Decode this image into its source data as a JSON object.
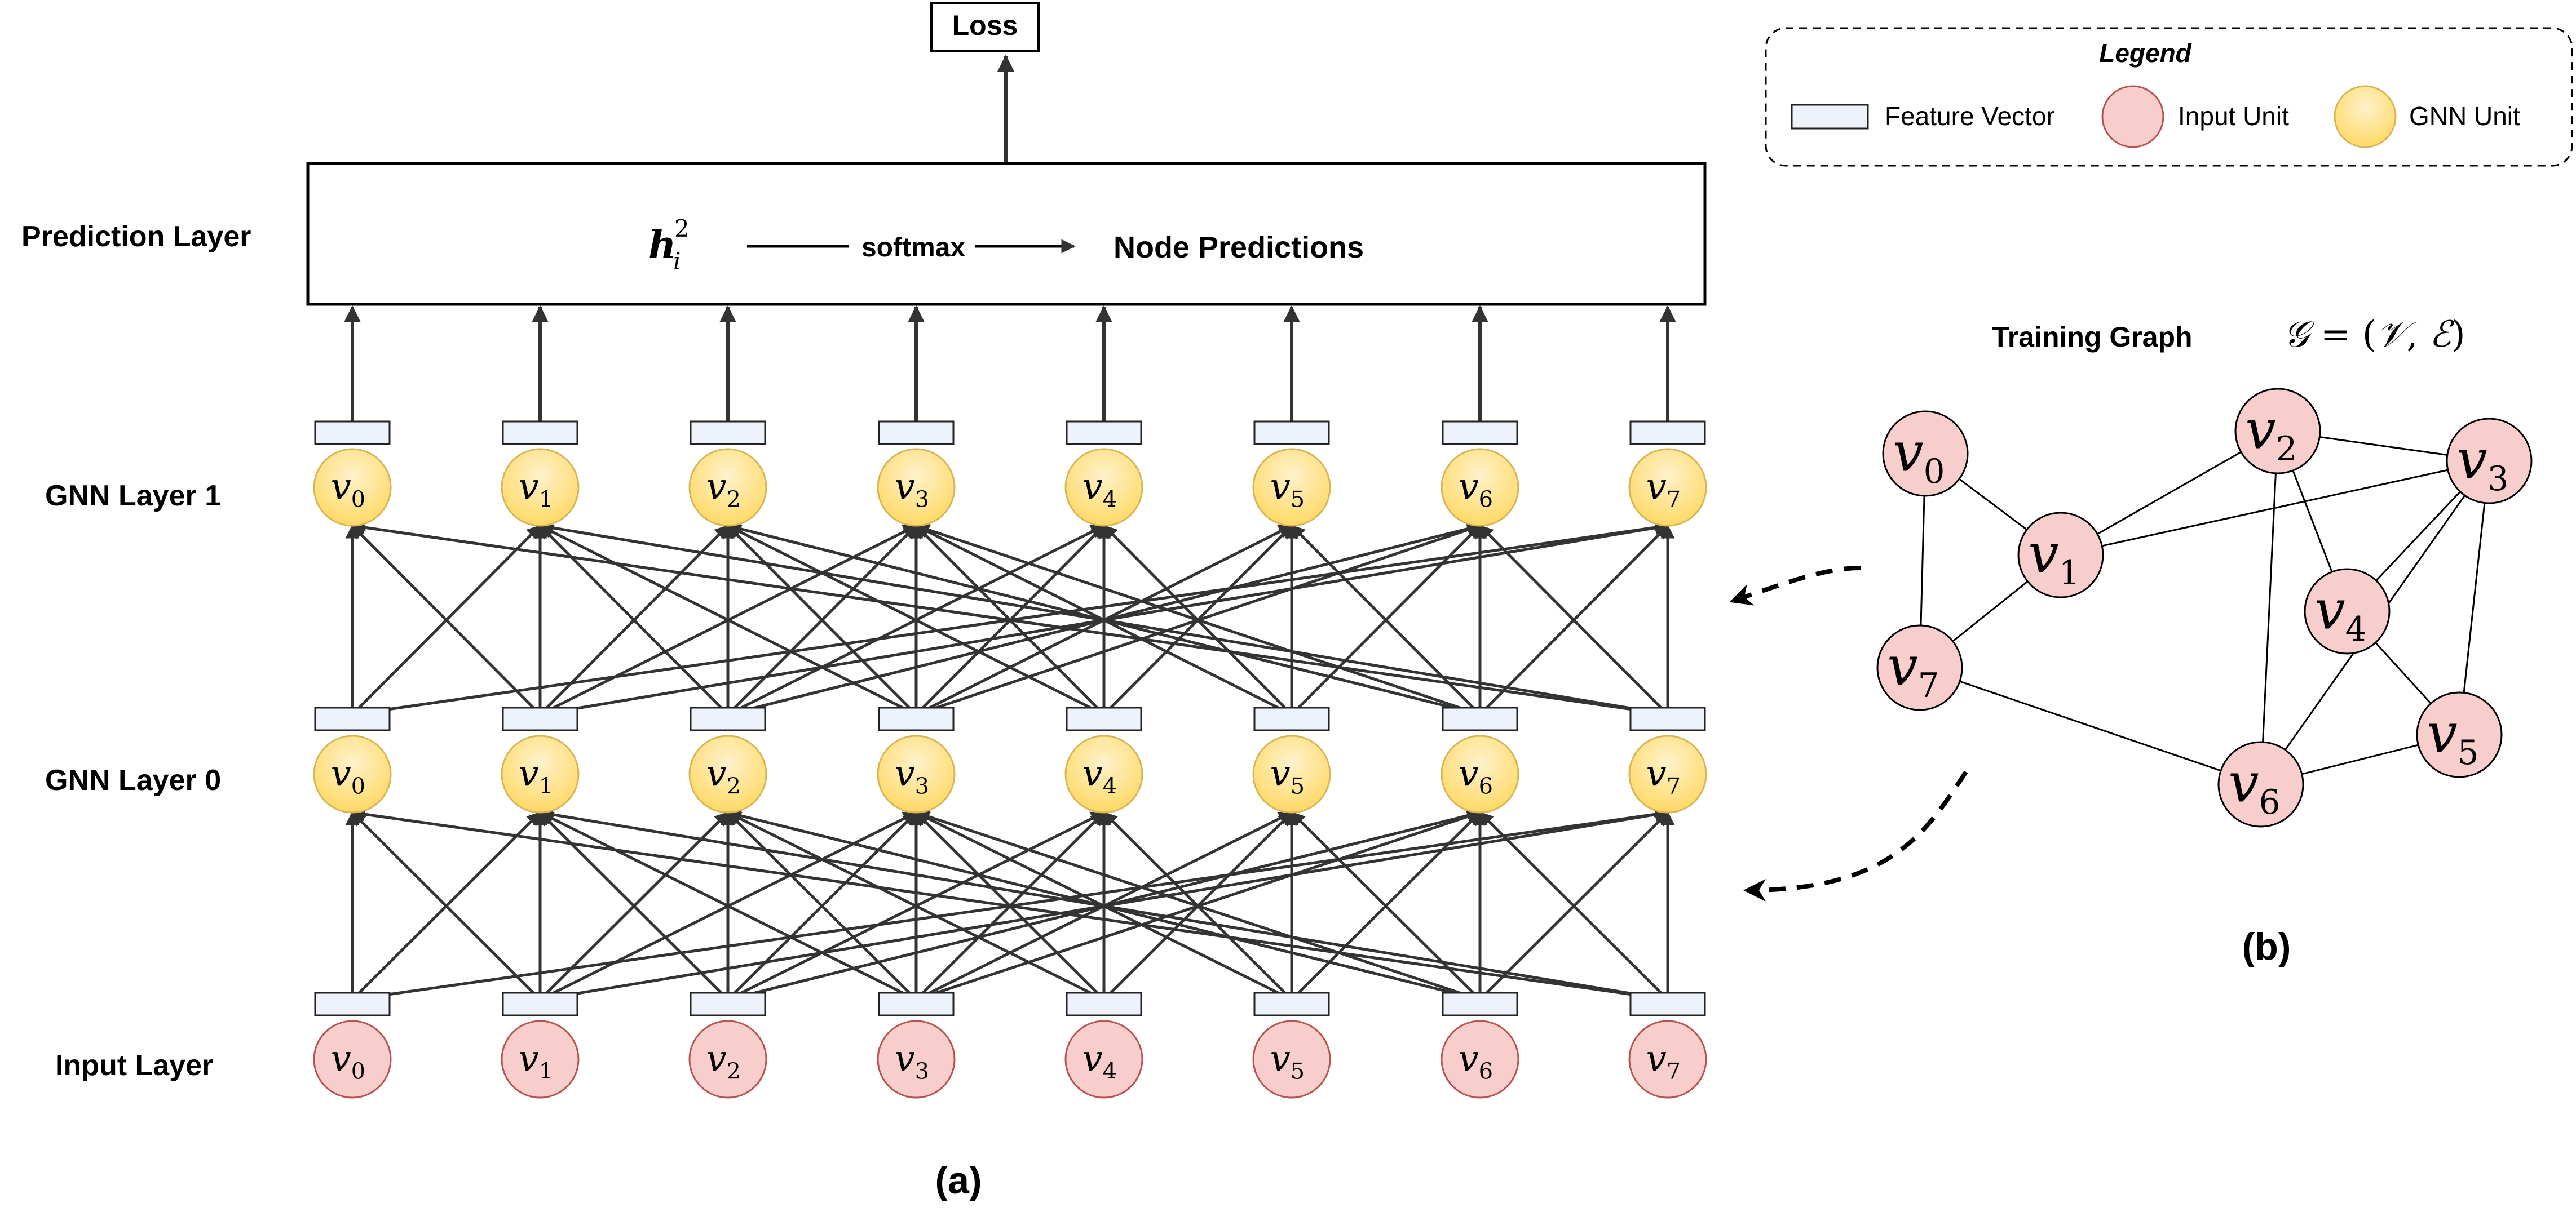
{
  "labels": {
    "loss": "Loss",
    "prediction_layer": "Prediction Layer",
    "gnn_layer_1": "GNN Layer 1",
    "gnn_layer_0": "GNN Layer 0",
    "input_layer": "Input Layer",
    "caption_a": "(a)",
    "caption_b": "(b)",
    "training_graph": "Training Graph",
    "softmax": "softmax",
    "node_predictions": "Node Predictions",
    "h_symbol": "h",
    "h_subscript": "i",
    "h_superscript": "2"
  },
  "graph_formula": {
    "g": "𝒢",
    "equals": " = (",
    "v": "𝒱",
    "comma": ", ",
    "e": "ℰ",
    "close": ")"
  },
  "legend": {
    "title": "Legend",
    "feature_vector": "Feature Vector",
    "input_unit": "Input Unit",
    "gnn_unit": "GNN Unit"
  },
  "node_symbol": "v",
  "nodes": [
    "0",
    "1",
    "2",
    "3",
    "4",
    "5",
    "6",
    "7"
  ],
  "graph_edges": [
    [
      0,
      1
    ],
    [
      0,
      7
    ],
    [
      1,
      2
    ],
    [
      1,
      3
    ],
    [
      1,
      7
    ],
    [
      2,
      3
    ],
    [
      2,
      4
    ],
    [
      2,
      6
    ],
    [
      3,
      4
    ],
    [
      3,
      5
    ],
    [
      3,
      6
    ],
    [
      4,
      5
    ],
    [
      5,
      6
    ],
    [
      6,
      7
    ]
  ],
  "colors": {
    "input_fill": "#f8cecc",
    "input_stroke": "#b85450",
    "gnn_fill_top": "#fff2cc",
    "gnn_fill_bottom": "#ffd966",
    "gnn_stroke": "#d6b656",
    "feature_fill": "#eef2fb",
    "feature_stroke": "#222222",
    "arrow": "#333333"
  }
}
